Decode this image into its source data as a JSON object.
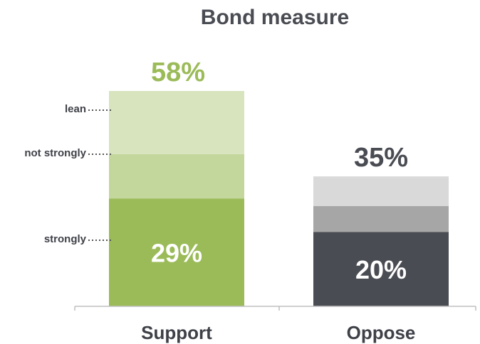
{
  "chart_data": {
    "type": "bar",
    "stacked": true,
    "title": "Bond measure",
    "categories": [
      "Support",
      "Oppose"
    ],
    "bars": [
      {
        "category": "Support",
        "total_label": "58%",
        "total": 58,
        "segments": [
          {
            "name": "strongly",
            "value": 29,
            "color": "#9bbb59",
            "label": "29%"
          },
          {
            "name": "not strongly",
            "value": 12,
            "color": "#c3d69b",
            "label": ""
          },
          {
            "name": "lean",
            "value": 17,
            "color": "#d7e4bd",
            "label": ""
          }
        ],
        "total_color": "#9bbb59"
      },
      {
        "category": "Oppose",
        "total_label": "35%",
        "total": 35,
        "segments": [
          {
            "name": "strongly",
            "value": 20,
            "color": "#4a4c53",
            "label": "20%"
          },
          {
            "name": "not strongly",
            "value": 7,
            "color": "#a6a6a6",
            "label": ""
          },
          {
            "name": "lean",
            "value": 8,
            "color": "#d9d9d9",
            "label": ""
          }
        ],
        "total_color": "#4a4c53"
      }
    ],
    "annotations": [
      {
        "text": "lean",
        "target_bar": 0,
        "target_segment": 2
      },
      {
        "text": "not strongly",
        "target_bar": 0,
        "target_segment": 1
      },
      {
        "text": "strongly",
        "target_bar": 0,
        "target_segment": 0
      }
    ],
    "ylim": [
      0,
      60
    ],
    "grid": false,
    "legend": "none"
  }
}
